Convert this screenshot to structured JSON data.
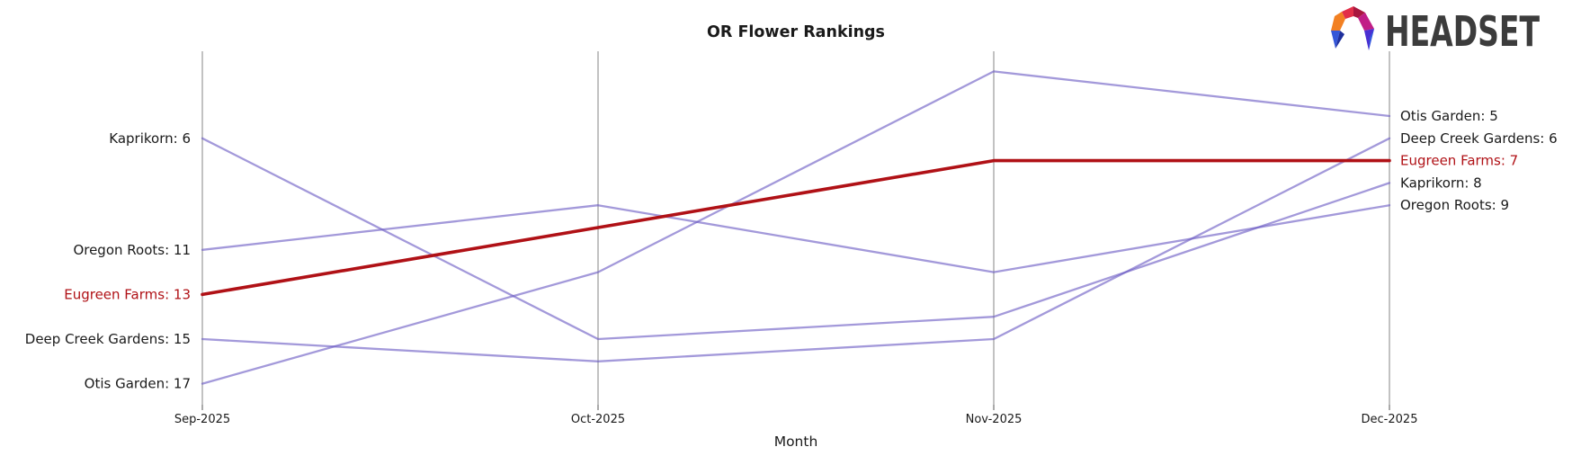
{
  "title": "OR Flower Rankings",
  "xlabel": "Month",
  "logo": {
    "text": "HEADSET"
  },
  "colors": {
    "line": "#6b5bc4",
    "line_apparent": "#a49bd9",
    "highlight": "#b01116",
    "axis": "#b3b3b3",
    "tick": "#555555",
    "text": "#1a1a1a",
    "logo_text": "#3c3c3c"
  },
  "chart_data": {
    "type": "line",
    "subtype": "bump-ranking",
    "categories": [
      "Sep-2025",
      "Oct-2025",
      "Nov-2025",
      "Dec-2025"
    ],
    "series": [
      {
        "name": "Kaprikorn",
        "values": [
          6,
          15,
          14,
          8
        ],
        "highlight": false
      },
      {
        "name": "Oregon Roots",
        "values": [
          11,
          9,
          12,
          9
        ],
        "highlight": false
      },
      {
        "name": "Eugreen Farms",
        "values": [
          13,
          10,
          7,
          7
        ],
        "highlight": true
      },
      {
        "name": "Deep Creek Gardens",
        "values": [
          15,
          16,
          15,
          6
        ],
        "highlight": false
      },
      {
        "name": "Otis Garden",
        "values": [
          17,
          12,
          3,
          5
        ],
        "highlight": false
      }
    ],
    "left_labels": [
      "Kaprikorn: 6",
      "Oregon Roots: 11",
      "Eugreen Farms: 13",
      "Deep Creek Gardens: 15",
      "Otis Garden: 17"
    ],
    "right_labels": [
      "Otis Garden: 5",
      "Deep Creek Gardens: 6",
      "Eugreen Farms: 7",
      "Kaprikorn: 8",
      "Oregon Roots: 9"
    ],
    "title": "OR Flower Rankings",
    "xlabel": "Month",
    "ylabel": "",
    "y_meaning": "rank (lower is better)",
    "ylim": [
      2,
      18
    ],
    "grid": false,
    "legend_position": "inline-labels"
  }
}
